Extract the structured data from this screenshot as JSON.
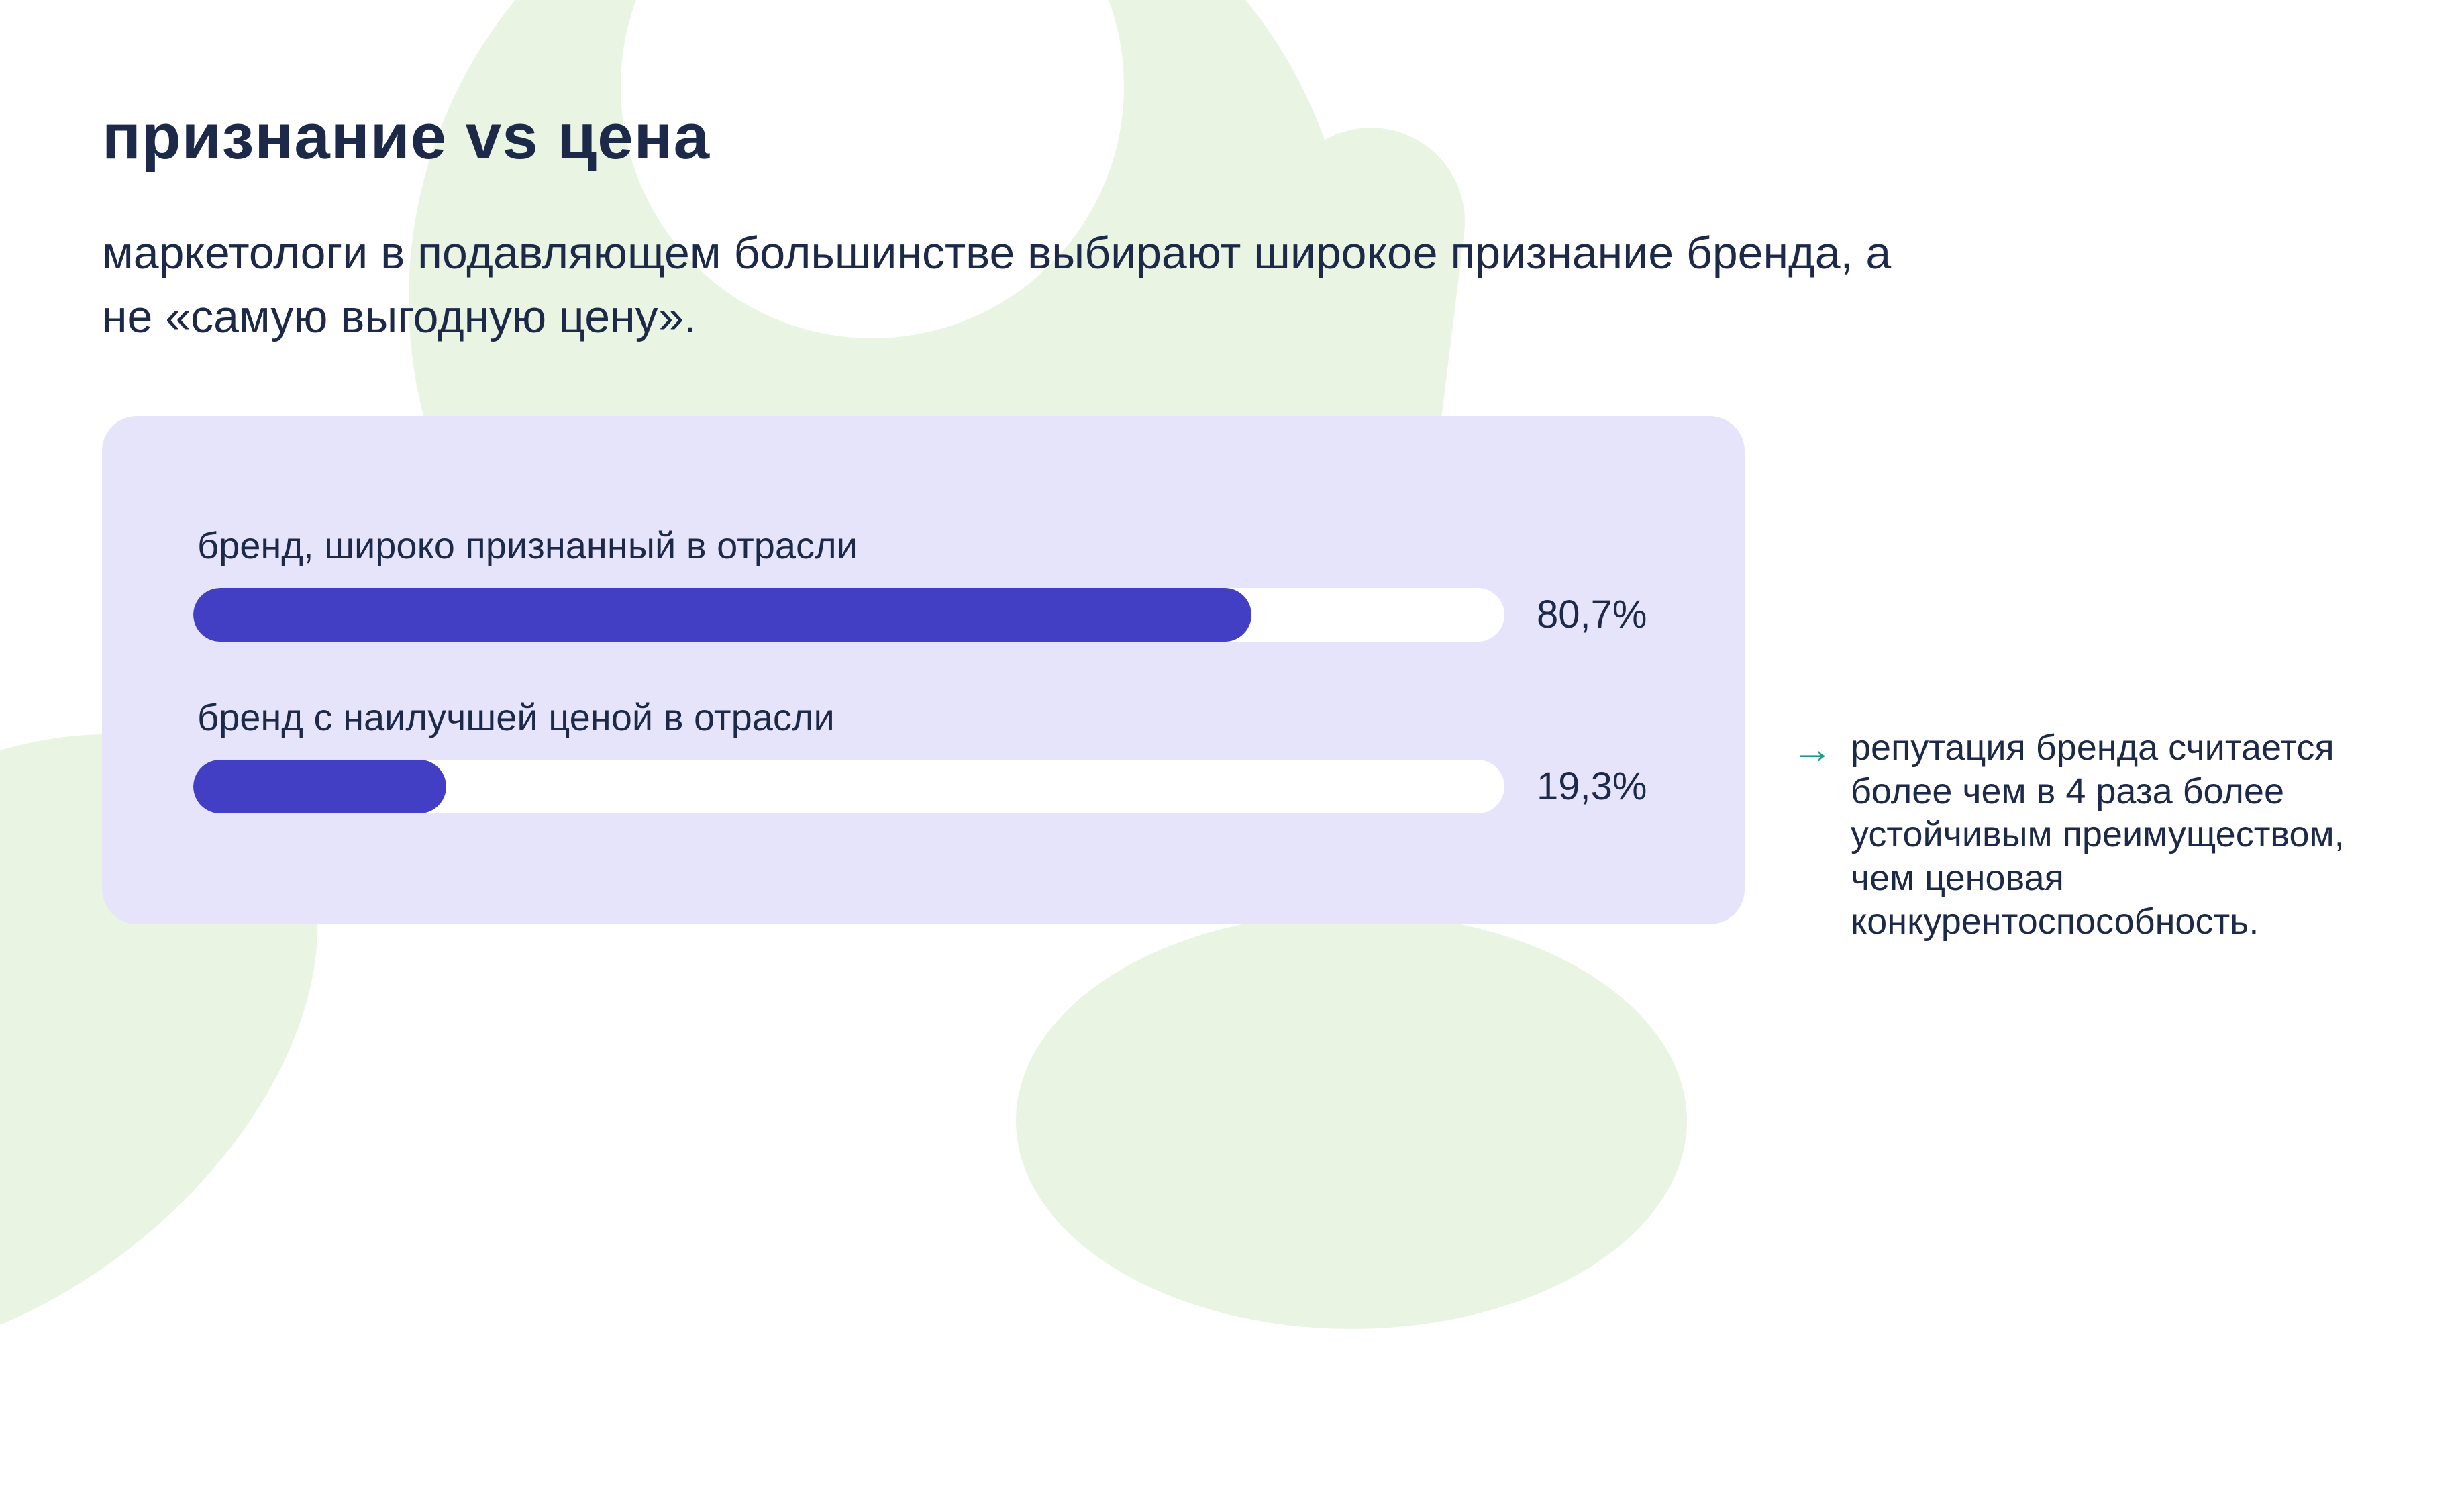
{
  "page": {
    "title": "признание vs цена",
    "subtitle": "маркетологи в подавляющем большинстве выбирают широкое признание бренда, а не «самую выгодную цену».",
    "annotation": {
      "arrow_icon": "→",
      "text": "репутация бренда считается более чем в 4 раза более устойчивым преимуществом, чем ценовая конкурентоспособность."
    },
    "colors": {
      "text": "#1c2948",
      "bar_fill": "#423fc4",
      "bar_track": "#ffffff",
      "panel_background": "#e6e4fb",
      "annotation_arrow": "#1c9c8c",
      "background_blob": "#e9f5e2"
    }
  },
  "chart_data": {
    "type": "bar",
    "orientation": "horizontal",
    "title": "признание vs цена",
    "categories": [
      "бренд, широко признанный в отрасли",
      "бренд с наилучшей ценой в отрасли"
    ],
    "values": [
      80.7,
      19.3
    ],
    "value_labels": [
      "80,7%",
      "19,3%"
    ],
    "xlim": [
      0,
      100
    ],
    "grid": false,
    "legend": "none"
  }
}
